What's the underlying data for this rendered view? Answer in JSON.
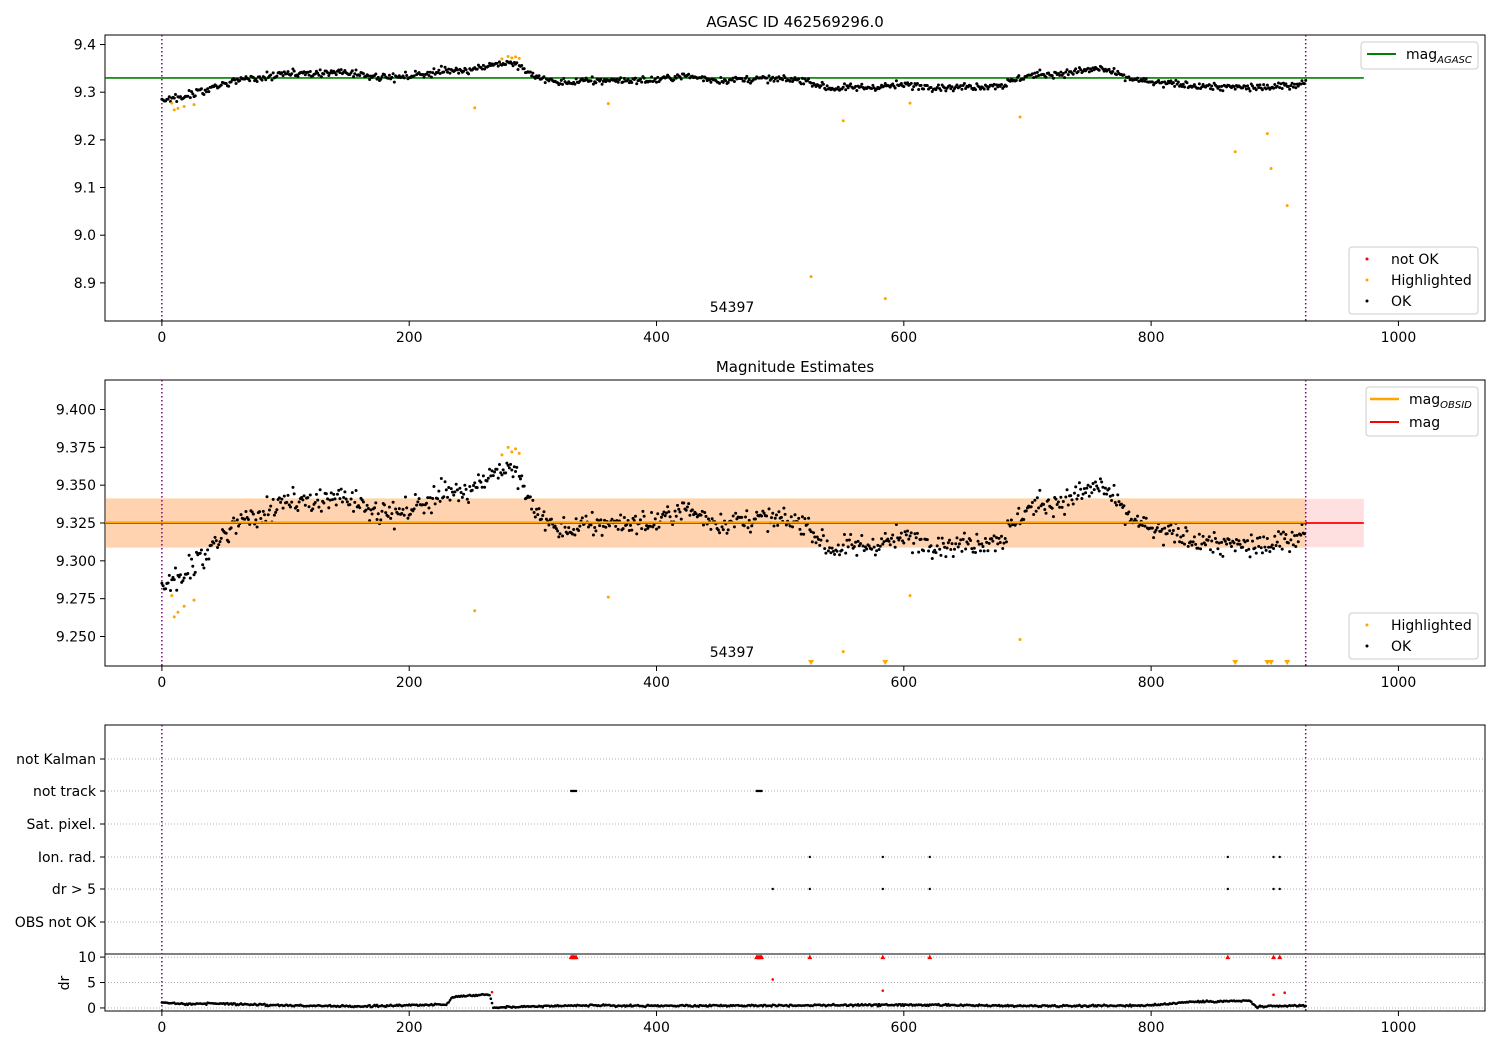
{
  "chart_data": [
    {
      "type": "scatter",
      "title": "AGASC ID 462569296.0",
      "xlim": [
        -46,
        1070
      ],
      "ylim": [
        8.82,
        9.42
      ],
      "xticks": [
        0,
        200,
        400,
        600,
        800,
        1000
      ],
      "yticks": [
        8.9,
        9.0,
        9.1,
        9.2,
        9.3,
        9.4
      ],
      "ytick_labels": [
        "8.9",
        "9.0",
        "9.1",
        "9.2",
        "9.3",
        "9.4"
      ],
      "annotation": "54397",
      "vlines": [
        0,
        925
      ],
      "hline": {
        "name": "mag_AGASC",
        "label_main": "mag",
        "label_sub": "AGASC",
        "y": 9.33,
        "x_end": 972,
        "color": "#008000"
      },
      "legend_top": [
        {
          "label": "mag",
          "sub": "AGASC",
          "color": "#008000"
        }
      ],
      "legend_bottom": [
        {
          "label": "not OK",
          "color": "#ff0000"
        },
        {
          "label": "Highlighted",
          "color": "#ffa500"
        },
        {
          "label": "OK",
          "color": "#000000"
        }
      ],
      "series": [
        {
          "name": "OK",
          "color": "#000000",
          "profile": [
            [
              0,
              9.285
            ],
            [
              15,
              9.29
            ],
            [
              30,
              9.3
            ],
            [
              45,
              9.315
            ],
            [
              60,
              9.325
            ],
            [
              80,
              9.33
            ],
            [
              100,
              9.338
            ],
            [
              130,
              9.34
            ],
            [
              150,
              9.342
            ],
            [
              170,
              9.335
            ],
            [
              190,
              9.33
            ],
            [
              210,
              9.338
            ],
            [
              230,
              9.345
            ],
            [
              250,
              9.348
            ],
            [
              270,
              9.36
            ],
            [
              285,
              9.36
            ],
            [
              300,
              9.335
            ],
            [
              320,
              9.32
            ],
            [
              360,
              9.325
            ],
            [
              400,
              9.325
            ],
            [
              420,
              9.335
            ],
            [
              450,
              9.325
            ],
            [
              480,
              9.328
            ],
            [
              520,
              9.325
            ],
            [
              540,
              9.308
            ],
            [
              570,
              9.31
            ],
            [
              600,
              9.315
            ],
            [
              640,
              9.31
            ],
            [
              680,
              9.315
            ],
            [
              700,
              9.335
            ],
            [
              730,
              9.34
            ],
            [
              760,
              9.35
            ],
            [
              780,
              9.33
            ],
            [
              800,
              9.32
            ],
            [
              830,
              9.315
            ],
            [
              860,
              9.31
            ],
            [
              900,
              9.31
            ],
            [
              925,
              9.32
            ]
          ],
          "noise": 0.012
        },
        {
          "name": "Highlighted",
          "color": "#ffa500",
          "points": [
            [
              8,
              9.277
            ],
            [
              10,
              9.263
            ],
            [
              13,
              9.266
            ],
            [
              18,
              9.27
            ],
            [
              26,
              9.274
            ],
            [
              253,
              9.267
            ],
            [
              275,
              9.37
            ],
            [
              280,
              9.375
            ],
            [
              283,
              9.372
            ],
            [
              286,
              9.374
            ],
            [
              289,
              9.371
            ],
            [
              361,
              9.276
            ],
            [
              525,
              8.913
            ],
            [
              551,
              9.24
            ],
            [
              585,
              8.867
            ],
            [
              605,
              9.277
            ],
            [
              694,
              9.248
            ],
            [
              868,
              9.175
            ],
            [
              894,
              9.213
            ],
            [
              897,
              9.14
            ],
            [
              910,
              9.062
            ]
          ]
        }
      ]
    },
    {
      "type": "scatter",
      "title": "Magnitude Estimates",
      "xlim": [
        -46,
        1070
      ],
      "ylim": [
        9.2305,
        9.4195
      ],
      "xticks": [
        0,
        200,
        400,
        600,
        800,
        1000
      ],
      "yticks": [
        9.25,
        9.275,
        9.3,
        9.325,
        9.35,
        9.375,
        9.4
      ],
      "ytick_labels": [
        "9.250",
        "9.275",
        "9.300",
        "9.325",
        "9.350",
        "9.375",
        "9.400"
      ],
      "annotation": "54397",
      "vlines": [
        0,
        925
      ],
      "mag_line": {
        "y": 9.325,
        "band": [
          9.309,
          9.341
        ],
        "x_end": 972,
        "color": "#ff0000"
      },
      "mag_obsid": {
        "y": 9.3255,
        "band": [
          9.3085,
          9.3415
        ],
        "x_end": 925,
        "color": "#ffa500"
      },
      "legend_top": [
        {
          "label": "mag",
          "sub": "OBSID",
          "color": "#ffa500"
        },
        {
          "label": "mag",
          "sub": "",
          "color": "#ff0000"
        }
      ],
      "legend_bottom": [
        {
          "label": "Highlighted",
          "color": "#ffa500"
        },
        {
          "label": "OK",
          "color": "#000000"
        }
      ],
      "series": [
        {
          "name": "OK",
          "color": "#000000",
          "profile": [
            [
              0,
              9.285
            ],
            [
              15,
              9.29
            ],
            [
              30,
              9.3
            ],
            [
              45,
              9.315
            ],
            [
              60,
              9.325
            ],
            [
              80,
              9.33
            ],
            [
              100,
              9.338
            ],
            [
              130,
              9.34
            ],
            [
              150,
              9.342
            ],
            [
              170,
              9.335
            ],
            [
              190,
              9.33
            ],
            [
              210,
              9.338
            ],
            [
              230,
              9.345
            ],
            [
              250,
              9.348
            ],
            [
              270,
              9.36
            ],
            [
              285,
              9.36
            ],
            [
              300,
              9.335
            ],
            [
              320,
              9.32
            ],
            [
              360,
              9.325
            ],
            [
              400,
              9.325
            ],
            [
              420,
              9.335
            ],
            [
              450,
              9.325
            ],
            [
              480,
              9.328
            ],
            [
              520,
              9.325
            ],
            [
              540,
              9.308
            ],
            [
              570,
              9.31
            ],
            [
              600,
              9.315
            ],
            [
              640,
              9.31
            ],
            [
              680,
              9.315
            ],
            [
              700,
              9.335
            ],
            [
              730,
              9.34
            ],
            [
              760,
              9.35
            ],
            [
              780,
              9.33
            ],
            [
              800,
              9.32
            ],
            [
              830,
              9.315
            ],
            [
              860,
              9.31
            ],
            [
              900,
              9.31
            ],
            [
              925,
              9.32
            ]
          ],
          "noise": 0.012
        },
        {
          "name": "Highlighted",
          "color": "#ffa500",
          "points": [
            [
              8,
              9.277
            ],
            [
              10,
              9.263
            ],
            [
              13,
              9.266
            ],
            [
              18,
              9.27
            ],
            [
              26,
              9.274
            ],
            [
              253,
              9.267
            ],
            [
              275,
              9.37
            ],
            [
              280,
              9.375
            ],
            [
              283,
              9.372
            ],
            [
              286,
              9.374
            ],
            [
              289,
              9.371
            ],
            [
              361,
              9.276
            ],
            [
              551,
              9.24
            ],
            [
              605,
              9.277
            ],
            [
              694,
              9.248
            ]
          ]
        },
        {
          "name": "Highlighted (below range)",
          "color": "#ffa500",
          "marker": "triangle-down",
          "x": [
            525,
            585,
            868,
            894,
            897,
            910
          ]
        }
      ]
    },
    {
      "type": "scatter",
      "title": "",
      "xlim": [
        -46,
        1070
      ],
      "xticks": [
        0,
        200,
        400,
        600,
        800,
        1000
      ],
      "vlines": [
        0,
        925
      ],
      "categories": [
        "not Kalman",
        "not track",
        "Sat. pixel.",
        "Ion. rad.",
        "dr > 5",
        "OBS not OK"
      ],
      "flags": {
        "not Kalman": [],
        "not track": [
          331,
          332,
          333,
          334,
          335,
          481,
          482,
          483,
          484,
          485
        ],
        "Sat. pixel.": [],
        "Ion. rad.": [
          524,
          583,
          621,
          862,
          899,
          904
        ],
        "dr > 5": [
          494,
          524,
          583,
          621,
          862,
          899,
          904
        ],
        "OBS not OK": []
      },
      "dr": {
        "ylabel": "dr",
        "ylim": [
          -0.6,
          11.2
        ],
        "yticks": [
          0,
          5,
          10
        ],
        "ytick_labels": [
          "0",
          "5",
          "10"
        ],
        "clipped_value": 10,
        "profile": [
          [
            0,
            1.0
          ],
          [
            20,
            0.8
          ],
          [
            40,
            0.9
          ],
          [
            100,
            0.5
          ],
          [
            160,
            0.3
          ],
          [
            230,
            0.7
          ],
          [
            235,
            2.2
          ],
          [
            265,
            2.7
          ],
          [
            268,
            0.1
          ],
          [
            300,
            0.3
          ],
          [
            330,
            0.5
          ],
          [
            400,
            0.4
          ],
          [
            500,
            0.5
          ],
          [
            600,
            0.6
          ],
          [
            700,
            0.4
          ],
          [
            800,
            0.5
          ],
          [
            830,
            1.2
          ],
          [
            880,
            1.4
          ],
          [
            885,
            0.2
          ],
          [
            925,
            0.5
          ]
        ],
        "outliers_clipped": [
          331,
          332,
          333,
          334,
          335,
          481,
          482,
          483,
          484,
          485,
          524,
          583,
          621,
          862,
          899,
          904
        ],
        "outliers": [
          [
            267,
            3.1
          ],
          [
            494,
            5.6
          ],
          [
            583,
            3.4
          ],
          [
            899,
            2.6
          ],
          [
            908,
            3.0
          ]
        ]
      }
    }
  ]
}
